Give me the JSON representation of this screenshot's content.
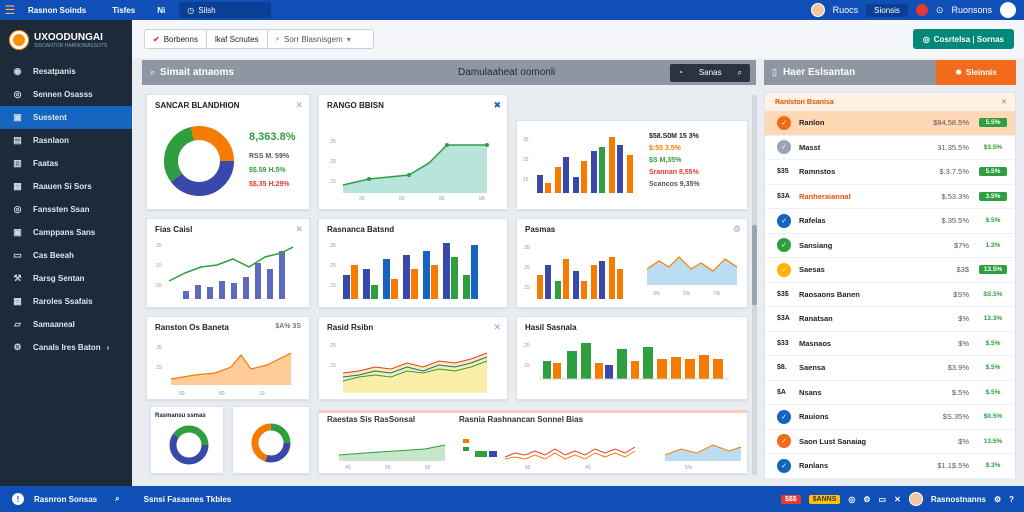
{
  "topbar": {
    "app_title": "Rasnon Soinds",
    "item2": "Tisfes",
    "item3": "Ni",
    "tab_label": "Silsh",
    "user_name": "Ruocs",
    "pill": "Sionsis",
    "account": "Ruonsons"
  },
  "sidebar": {
    "brand_name": "UXOODUNGAI",
    "brand_sub": "SISOANTOR HARNOMASSOTS",
    "items": [
      {
        "label": "Resatpanis",
        "icon": "circle-icon"
      },
      {
        "label": "Sennen Osasss",
        "icon": "target-icon"
      },
      {
        "label": "Suestent",
        "icon": "briefcase-icon",
        "active": true
      },
      {
        "label": "Rasnlaon",
        "icon": "folder-icon"
      },
      {
        "label": "Faatas",
        "icon": "bar-chart-icon"
      },
      {
        "label": "Raauen Si Sors",
        "icon": "grid-icon"
      },
      {
        "label": "Fanssten Ssan",
        "icon": "target-icon"
      },
      {
        "label": "Camppans Sans",
        "icon": "briefcase-icon"
      },
      {
        "label": "Cas Beeah",
        "icon": "monitor-icon"
      },
      {
        "label": "Rarsg Sentan",
        "icon": "wrench-icon"
      },
      {
        "label": "Raroles Ssafais",
        "icon": "grid-icon"
      },
      {
        "label": "Samaaneal",
        "icon": "layers-icon"
      },
      {
        "label": "Canals Ires Baton",
        "icon": "gear-icon"
      }
    ]
  },
  "toolbar": {
    "btn1": "Borbenns",
    "btn2": "lkaf Scnutes",
    "search_placeholder": "Sorr Blasnisgem",
    "green_button": "Cosrtelsa | Sornas"
  },
  "main_header": {
    "title": "Simait atnaoms",
    "center": "Damulaaheat oomonli",
    "btn": "Sanas"
  },
  "right_header": {
    "title": "Haer Eslsantan",
    "btn": "Sleinnis"
  },
  "cards": {
    "c1": {
      "title": "SANCAR BLANDHION",
      "kpi1": "8,363.8%",
      "kpi2": "RSS M. 59%",
      "kpi3": "$$.59 H.5%",
      "kpi4": "$$,35 H.29%"
    },
    "c2": {
      "title": "RANGO BBISN"
    },
    "c3": {
      "kpi1": "$58.S0M 15 3%",
      "kpi2": "$:55 3.5%",
      "kpi3": "$S M,35%",
      "kpi4": "Srannan 8,55%",
      "kpi5": "Scancos 9,35%"
    },
    "c4": {
      "title": "Fias Caisl"
    },
    "c5": {
      "title": "Rasnanca Batsnd"
    },
    "c6": {
      "title": "Pasmas"
    },
    "c7": {
      "title": "Ranston Os Baneta",
      "kpi": "$A% 3S"
    },
    "c8": {
      "title": "Rasid Rsibn"
    },
    "c9": {
      "title": "Hasil Sasnala"
    },
    "c10": {
      "title": "Rasmansu ssmas"
    },
    "c12": {
      "title": "Raestas Sis RasSonsal",
      "title2": "Rasnia Rashnancan Sonnel Bias"
    }
  },
  "right_panel": {
    "header": "Raniston Bsanisa",
    "rows": [
      {
        "label": "Ranlon",
        "value": "$84,58.5%",
        "badge": "5.5%",
        "icon_color": "#f26b1d",
        "badge_color": "#2e9e3e",
        "highlight": true
      },
      {
        "label": "Masst",
        "value": "31.35.5%",
        "badge": "$3.5%",
        "icon_color": "#9aa5b1",
        "badge_color": ""
      },
      {
        "label": "Ramnstos",
        "value": "$.3.7.5%",
        "badge": "5.5%",
        "icon_color": "#9aa5b1",
        "badge_color": "#2e9e3e",
        "prefix": "$35"
      },
      {
        "label": "Ranheraiannal",
        "value": "$.53.3%",
        "badge": "3.5%",
        "icon_color": "#9aa5b1",
        "badge_color": "#2e9e3e",
        "prefix": "$3A"
      },
      {
        "label": "Rafelas",
        "value": "$.35.5%",
        "badge": "$.5%",
        "icon_color": "#1565c0",
        "badge_color": ""
      },
      {
        "label": "Sansiang",
        "value": "$7%",
        "badge": "1.3%",
        "icon_color": "#2e9e3e",
        "badge_color": ""
      },
      {
        "label": "Saesas",
        "value": "$3$",
        "badge": "13.5%",
        "icon_color": "#ffb300",
        "badge_color": "#2e9e3e"
      },
      {
        "label": "Raosaons Banen",
        "value": "$S%",
        "badge": "$S.5%",
        "icon_color": "#9aa5b1",
        "badge_color": "",
        "prefix": "$3$"
      },
      {
        "label": "Ranatsan",
        "value": "$%",
        "badge": "13.3%",
        "icon_color": "#9aa5b1",
        "badge_color": "",
        "prefix": "$3A"
      },
      {
        "label": "Masnaos",
        "value": "$%",
        "badge": "$.5%",
        "icon_color": "#9aa5b1",
        "badge_color": "",
        "prefix": "$33"
      },
      {
        "label": "Saensa",
        "value": "$3.9%",
        "badge": "$.5%",
        "icon_color": "#9aa5b1",
        "badge_color": "",
        "prefix": "$8."
      },
      {
        "label": "Nsans",
        "value": "$.5%",
        "badge": "$.5%",
        "icon_color": "#9aa5b1",
        "badge_color": "",
        "prefix": "$A"
      },
      {
        "label": "Rauions",
        "value": "$S.35%",
        "badge": "$0.5%",
        "icon_color": "#1565c0",
        "badge_color": ""
      },
      {
        "label": "Saon Lust Sanaiag",
        "value": "$%",
        "badge": "13.5%",
        "icon_color": "#f26b1d",
        "badge_color": ""
      },
      {
        "label": "Ranlans",
        "value": "$1.1$.5%",
        "badge": "$.3%",
        "icon_color": "#1565c0",
        "badge_color": ""
      }
    ]
  },
  "bottombar": {
    "left1": "Rasnron Sonsas",
    "left2": "Ssnsi Fasasnes Tkbles",
    "chip1": "$$$",
    "chip2": "$ANNS",
    "user": "Rasnostnanns"
  },
  "colors": {
    "accent": "#0f4fb6",
    "sidebar": "#1d2a3a",
    "orange": "#f26b1d",
    "green": "#2e9e3e"
  }
}
